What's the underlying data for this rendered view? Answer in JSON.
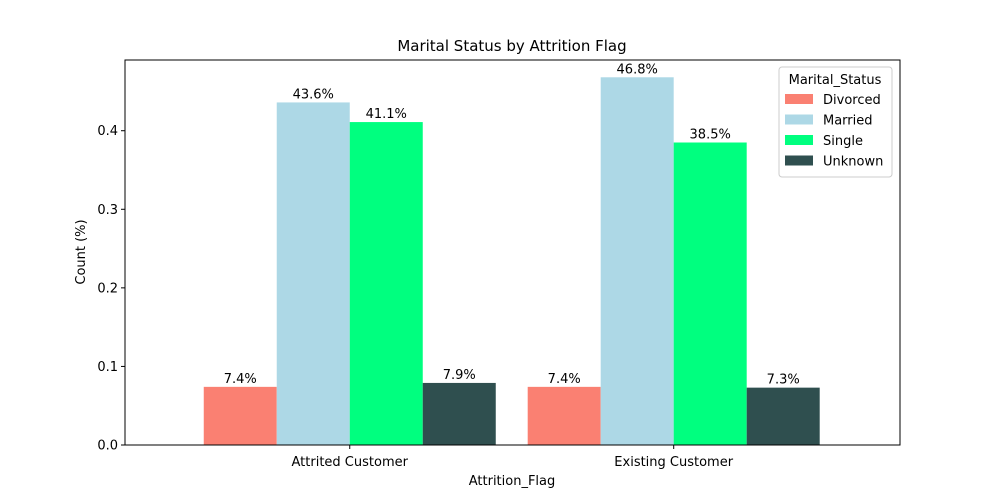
{
  "chart_data": {
    "type": "bar",
    "title": "Marital Status by Attrition Flag",
    "xlabel": "Attrition_Flag",
    "ylabel": "Count (%)",
    "categories": [
      "Attrited Customer",
      "Existing Customer"
    ],
    "ylim": [
      0,
      0.49
    ],
    "yticks": [
      "0.0",
      "0.1",
      "0.2",
      "0.3",
      "0.4"
    ],
    "grid": false,
    "legend": {
      "title": "Marital_Status",
      "placement": "top-right"
    },
    "series": [
      {
        "name": "Divorced",
        "color": "#FA8072",
        "values": [
          0.074,
          0.074
        ],
        "labels": [
          "7.4%",
          "7.4%"
        ]
      },
      {
        "name": "Married",
        "color": "#ADD8E6",
        "values": [
          0.436,
          0.468
        ],
        "labels": [
          "43.6%",
          "46.8%"
        ]
      },
      {
        "name": "Single",
        "color": "#00FF7F",
        "values": [
          0.411,
          0.385
        ],
        "labels": [
          "41.1%",
          "38.5%"
        ]
      },
      {
        "name": "Unknown",
        "color": "#2F4F4F",
        "values": [
          0.079,
          0.073
        ],
        "labels": [
          "7.9%",
          "7.3%"
        ]
      }
    ]
  }
}
